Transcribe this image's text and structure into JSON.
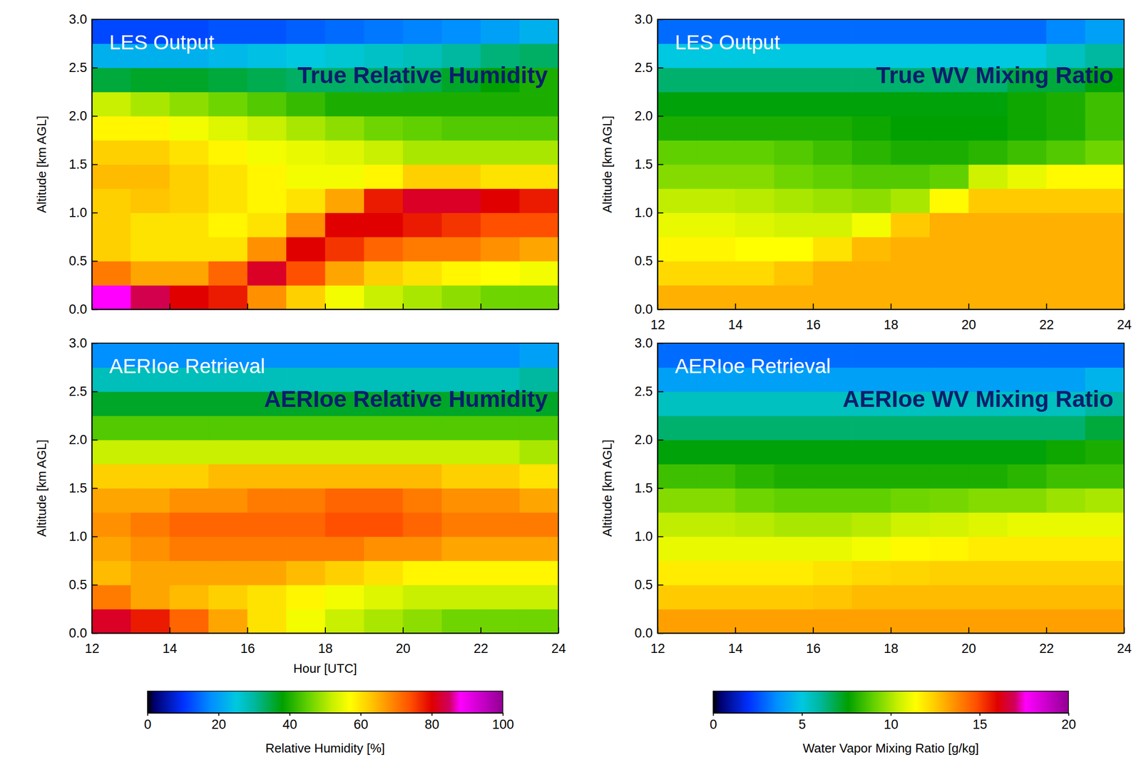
{
  "chart_data": [
    {
      "type": "heatmap",
      "subtitle": "LES Output",
      "title": "True Relative Humidity",
      "y_label": "Altitude [km AGL]",
      "tick_labels": "y",
      "xlim": [
        12,
        24
      ],
      "xticks": [
        12,
        14,
        16,
        18,
        20,
        22,
        24
      ],
      "ylim": [
        0,
        3
      ],
      "yticks": [
        {
          "value": 0,
          "label": "0.0"
        },
        {
          "value": 0.5,
          "label": "0.5"
        },
        {
          "value": 1,
          "label": "1.0"
        },
        {
          "value": 1.5,
          "label": "1.5"
        },
        {
          "value": 2,
          "label": "2.0"
        },
        {
          "value": 2.5,
          "label": "2.5"
        },
        {
          "value": 3,
          "label": "3.0"
        }
      ],
      "zlim": [
        0,
        100
      ],
      "x": [
        12.5,
        13.5,
        14.5,
        15.5,
        16.5,
        17.5,
        18.5,
        19.5,
        20.5,
        21.5,
        22.5,
        23.5
      ],
      "y": [
        0.125,
        0.375,
        0.625,
        0.875,
        1.125,
        1.375,
        1.625,
        1.875,
        2.125,
        2.375,
        2.625,
        2.875
      ],
      "values": [
        [
          88,
          84,
          80,
          78,
          68,
          62,
          56,
          52,
          50,
          48,
          46,
          46
        ],
        [
          70,
          66,
          66,
          72,
          82,
          74,
          66,
          62,
          60,
          58,
          57,
          56
        ],
        [
          62,
          60,
          60,
          60,
          68,
          80,
          76,
          72,
          70,
          70,
          68,
          66
        ],
        [
          62,
          60,
          60,
          58,
          60,
          68,
          80,
          80,
          78,
          76,
          74,
          74
        ],
        [
          62,
          63,
          62,
          60,
          58,
          60,
          66,
          78,
          82,
          82,
          80,
          78
        ],
        [
          64,
          64,
          62,
          60,
          58,
          56,
          56,
          58,
          62,
          62,
          60,
          60
        ],
        [
          62,
          62,
          60,
          58,
          56,
          55,
          54,
          52,
          50,
          50,
          50,
          50
        ],
        [
          58,
          58,
          56,
          54,
          52,
          50,
          48,
          46,
          45,
          44,
          44,
          44
        ],
        [
          52,
          50,
          48,
          46,
          44,
          42,
          40,
          40,
          40,
          40,
          40,
          40
        ],
        [
          35,
          36,
          36,
          35,
          34,
          33,
          33,
          33,
          34,
          36,
          38,
          40
        ],
        [
          22,
          22,
          22,
          23,
          24,
          25,
          26,
          27,
          28,
          30,
          32,
          33
        ],
        [
          12,
          12,
          12,
          13,
          13,
          14,
          15,
          16,
          17,
          18,
          20,
          22
        ]
      ]
    },
    {
      "type": "heatmap",
      "subtitle": "LES Output",
      "title": "True WV Mixing Ratio",
      "y_label": "Altitude [km AGL]",
      "xlim": [
        12,
        24
      ],
      "xticks": [
        12,
        14,
        16,
        18,
        20,
        22,
        24
      ],
      "ylim": [
        0,
        3
      ],
      "yticks": [
        {
          "value": 0,
          "label": "0.0"
        },
        {
          "value": 0.5,
          "label": "0.5"
        },
        {
          "value": 1,
          "label": "1.0"
        },
        {
          "value": 1.5,
          "label": "1.5"
        },
        {
          "value": 2,
          "label": "2.0"
        },
        {
          "value": 2.5,
          "label": "2.5"
        },
        {
          "value": 3,
          "label": "3.0"
        }
      ],
      "zlim": [
        0,
        20
      ],
      "x": [
        12.5,
        13.5,
        14.5,
        15.5,
        16.5,
        17.5,
        18.5,
        19.5,
        20.5,
        21.5,
        22.5,
        23.5
      ],
      "y": [
        0.125,
        0.375,
        0.625,
        0.875,
        1.125,
        1.375,
        1.625,
        1.875,
        2.125,
        2.375,
        2.625,
        2.875
      ],
      "values": [
        [
          13,
          13,
          13,
          13,
          13,
          13,
          13,
          13,
          13,
          13,
          13,
          13
        ],
        [
          12.2,
          12.2,
          12.2,
          12.6,
          13,
          13,
          13,
          13,
          13,
          13,
          13,
          13
        ],
        [
          11.6,
          11.6,
          11.4,
          11.4,
          12,
          12.8,
          13,
          13,
          13,
          13,
          13,
          13
        ],
        [
          11,
          11,
          10.8,
          10.6,
          10.6,
          11.2,
          12.5,
          13,
          13,
          13,
          13,
          13
        ],
        [
          10.3,
          10.3,
          10.2,
          10,
          9.8,
          9.6,
          10,
          11.5,
          12.5,
          12.5,
          12.5,
          12.5
        ],
        [
          9.5,
          9.5,
          9.5,
          9.2,
          9,
          8.8,
          8.8,
          9,
          10.5,
          11,
          11.5,
          11.5
        ],
        [
          9,
          9,
          9,
          8.8,
          8.5,
          8.2,
          8,
          8,
          8.2,
          8.5,
          8.8,
          9.2
        ],
        [
          8,
          8,
          8,
          8,
          8,
          7.8,
          7.6,
          7.6,
          7.6,
          7.8,
          8,
          8.5
        ],
        [
          7.5,
          7.5,
          7.5,
          7.5,
          7.5,
          7.5,
          7.5,
          7.5,
          7.5,
          7.8,
          8,
          8.5
        ],
        [
          6.5,
          6.5,
          6.5,
          6.5,
          6.5,
          6.5,
          6.5,
          6.5,
          6.5,
          7,
          7,
          7.5
        ],
        [
          5,
          5,
          5,
          5,
          5,
          5,
          5,
          5,
          5,
          5,
          5.5,
          6
        ],
        [
          3,
          3,
          3,
          3,
          3,
          3,
          3,
          3,
          3,
          3,
          3.5,
          4
        ]
      ]
    },
    {
      "type": "heatmap",
      "subtitle": "AERIoe Retrieval",
      "title": "AERIoe Relative Humidity",
      "x_label": "Hour [UTC]",
      "y_label": "Altitude [km AGL]",
      "xlim": [
        12,
        24
      ],
      "xticks": [
        12,
        14,
        16,
        18,
        20,
        22,
        24
      ],
      "ylim": [
        0,
        3
      ],
      "yticks": [
        {
          "value": 0,
          "label": "0.0"
        },
        {
          "value": 0.5,
          "label": "0.5"
        },
        {
          "value": 1,
          "label": "1.0"
        },
        {
          "value": 1.5,
          "label": "1.5"
        },
        {
          "value": 2,
          "label": "2.0"
        },
        {
          "value": 2.5,
          "label": "2.5"
        },
        {
          "value": 3,
          "label": "3.0"
        }
      ],
      "zlim": [
        0,
        100
      ],
      "colorbar": {
        "label": "Relative Humidity [%]",
        "ticks": [
          0,
          20,
          40,
          60,
          80,
          100
        ]
      },
      "x": [
        12.5,
        13.5,
        14.5,
        15.5,
        16.5,
        17.5,
        18.5,
        19.5,
        20.5,
        21.5,
        22.5,
        23.5
      ],
      "y": [
        0.125,
        0.375,
        0.625,
        0.875,
        1.125,
        1.375,
        1.625,
        1.875,
        2.125,
        2.375,
        2.625,
        2.875
      ],
      "values": [
        [
          82,
          78,
          72,
          66,
          60,
          56,
          52,
          50,
          48,
          46,
          46,
          46
        ],
        [
          70,
          66,
          64,
          62,
          60,
          58,
          56,
          54,
          52,
          52,
          52,
          52
        ],
        [
          64,
          66,
          66,
          66,
          66,
          64,
          62,
          60,
          58,
          58,
          58,
          58
        ],
        [
          66,
          68,
          70,
          70,
          70,
          70,
          70,
          68,
          68,
          66,
          66,
          66
        ],
        [
          68,
          70,
          72,
          72,
          72,
          72,
          74,
          74,
          72,
          70,
          70,
          70
        ],
        [
          66,
          66,
          68,
          68,
          70,
          70,
          72,
          72,
          70,
          68,
          68,
          66
        ],
        [
          62,
          62,
          62,
          64,
          64,
          64,
          64,
          64,
          64,
          62,
          62,
          60
        ],
        [
          52,
          52,
          52,
          52,
          52,
          52,
          52,
          52,
          52,
          52,
          52,
          50
        ],
        [
          44,
          44,
          44,
          44,
          44,
          44,
          44,
          44,
          44,
          44,
          44,
          44
        ],
        [
          36,
          36,
          36,
          36,
          36,
          36,
          36,
          36,
          36,
          36,
          36,
          36
        ],
        [
          28,
          28,
          28,
          28,
          28,
          28,
          28,
          28,
          28,
          28,
          28,
          30
        ],
        [
          18,
          18,
          18,
          18,
          18,
          18,
          18,
          18,
          18,
          18,
          18,
          20
        ]
      ]
    },
    {
      "type": "heatmap",
      "subtitle": "AERIoe Retrieval",
      "title": "AERIoe WV Mixing Ratio",
      "y_label": "Altitude [km AGL]",
      "xlim": [
        12,
        24
      ],
      "xticks": [
        12,
        14,
        16,
        18,
        20,
        22,
        24
      ],
      "ylim": [
        0,
        3
      ],
      "yticks": [
        {
          "value": 0,
          "label": "0.0"
        },
        {
          "value": 0.5,
          "label": "0.5"
        },
        {
          "value": 1,
          "label": "1.0"
        },
        {
          "value": 1.5,
          "label": "1.5"
        },
        {
          "value": 2,
          "label": "2.0"
        },
        {
          "value": 2.5,
          "label": "2.5"
        },
        {
          "value": 3,
          "label": "3.0"
        }
      ],
      "zlim": [
        0,
        20
      ],
      "colorbar": {
        "label": "Water Vapor Mixing Ratio [g/kg]",
        "ticks": [
          0,
          5,
          10,
          15,
          20
        ]
      },
      "x": [
        12.5,
        13.5,
        14.5,
        15.5,
        16.5,
        17.5,
        18.5,
        19.5,
        20.5,
        21.5,
        22.5,
        23.5
      ],
      "y": [
        0.125,
        0.375,
        0.625,
        0.875,
        1.125,
        1.375,
        1.625,
        1.875,
        2.125,
        2.375,
        2.625,
        2.875
      ],
      "values": [
        [
          13.3,
          13.3,
          13.3,
          13.3,
          13.3,
          13.3,
          13.3,
          13.3,
          13.3,
          13.3,
          13.3,
          13.3
        ],
        [
          12.5,
          12.5,
          12.5,
          12.5,
          12.6,
          12.8,
          12.8,
          12.8,
          12.8,
          12.8,
          12.8,
          12.8
        ],
        [
          11.8,
          11.8,
          11.8,
          11.8,
          12,
          12.2,
          12.3,
          12.4,
          12.4,
          12.4,
          12.4,
          12.4
        ],
        [
          11,
          11,
          11,
          11,
          11,
          11.2,
          11.5,
          11.6,
          11.8,
          11.8,
          11.8,
          11.8
        ],
        [
          10.3,
          10.3,
          10.2,
          10,
          10,
          10.2,
          10.5,
          10.6,
          10.8,
          11,
          11,
          11
        ],
        [
          9.5,
          9.5,
          9.2,
          9,
          9,
          9,
          9.2,
          9.3,
          9.5,
          9.5,
          9.8,
          10
        ],
        [
          8.5,
          8.5,
          8.2,
          8,
          8,
          8,
          8,
          8,
          8,
          8.2,
          8.5,
          8.5
        ],
        [
          7.5,
          7.5,
          7.5,
          7.5,
          7.5,
          7.5,
          7.5,
          7.5,
          7.5,
          7.5,
          7.8,
          8
        ],
        [
          6.5,
          6.5,
          6.5,
          6.5,
          6.5,
          6.5,
          6.5,
          6.5,
          6.5,
          6.5,
          6.5,
          7
        ],
        [
          5.5,
          5.5,
          5.5,
          5.5,
          5.5,
          5.5,
          5.5,
          5.5,
          5.5,
          5.5,
          5.5,
          6
        ],
        [
          4,
          4,
          4,
          4,
          4,
          4,
          4,
          4,
          4,
          4,
          4,
          4.5
        ],
        [
          3,
          3,
          3,
          3,
          3,
          3,
          3,
          3,
          3,
          3,
          3,
          3
        ]
      ]
    }
  ]
}
